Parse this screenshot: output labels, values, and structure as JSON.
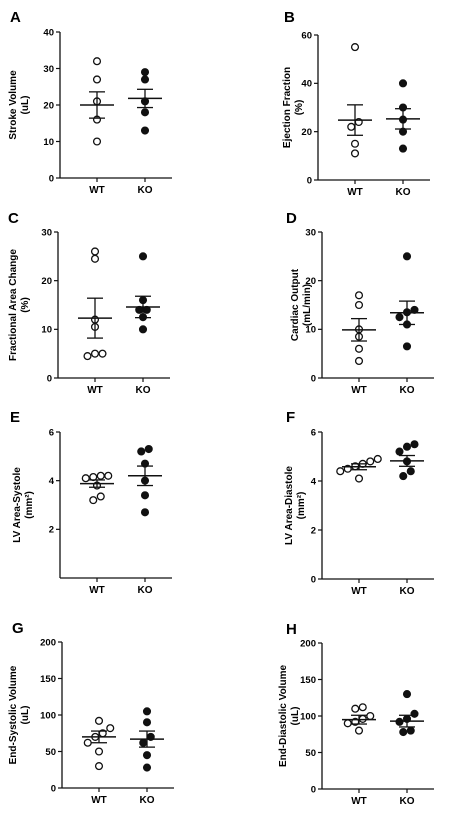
{
  "chart_data": [
    {
      "type": "scatter",
      "panel": "A",
      "categories": [
        "WT",
        "KO"
      ],
      "ylabel": [
        "Stroke Volume",
        "(uL)"
      ],
      "ylim": [
        0,
        40
      ],
      "yticks": [
        "0",
        "10",
        "20",
        "30",
        "40"
      ],
      "series": [
        {
          "values": [
            32,
            27,
            21,
            16,
            10
          ],
          "filled": false,
          "mean": 20,
          "sem": 3.6
        },
        {
          "values": [
            29,
            27,
            21,
            18,
            13
          ],
          "filled": true,
          "mean": 21.8,
          "sem": 2.5
        }
      ]
    },
    {
      "type": "scatter",
      "panel": "B",
      "categories": [
        "WT",
        "KO"
      ],
      "ylabel": [
        "Ejection Fraction",
        "(%)"
      ],
      "ylim": [
        0,
        60
      ],
      "yticks": [
        "0",
        "20",
        "40",
        "60"
      ],
      "series": [
        {
          "values": [
            55,
            24,
            22,
            15,
            11
          ],
          "filled": false,
          "mean": 24.8,
          "sem": 6.3
        },
        {
          "values": [
            40,
            30,
            25,
            20,
            13
          ],
          "filled": true,
          "mean": 25.3,
          "sem": 4.2
        }
      ]
    },
    {
      "type": "scatter",
      "panel": "C",
      "categories": [
        "WT",
        "KO"
      ],
      "ylabel": [
        "Fractional Area Change",
        "(%)"
      ],
      "ylim": [
        0,
        30
      ],
      "yticks": [
        "0",
        "10",
        "20",
        "30"
      ],
      "series": [
        {
          "values": [
            26,
            24.5,
            12,
            10.5,
            5,
            4.5,
            5
          ],
          "filled": false,
          "mean": 12.3,
          "sem": 4.1
        },
        {
          "values": [
            25,
            16,
            14,
            14,
            12.5,
            10
          ],
          "filled": true,
          "mean": 14.6,
          "sem": 2.2
        }
      ]
    },
    {
      "type": "scatter",
      "panel": "D",
      "categories": [
        "WT",
        "KO"
      ],
      "ylabel": [
        "Cardiac Output",
        "(mL/min)"
      ],
      "ylim": [
        0,
        30
      ],
      "yticks": [
        "0",
        "10",
        "20",
        "30"
      ],
      "series": [
        {
          "values": [
            17,
            15,
            10,
            8.5,
            6,
            3.5
          ],
          "filled": false,
          "mean": 9.9,
          "sem": 2.3
        },
        {
          "values": [
            25,
            14,
            13.5,
            12.5,
            11,
            6.5
          ],
          "filled": true,
          "mean": 13.4,
          "sem": 2.4
        }
      ]
    },
    {
      "type": "scatter",
      "panel": "E",
      "categories": [
        "WT",
        "KO"
      ],
      "ylabel": [
        "LV Area-Systole",
        "(mm²)"
      ],
      "ylim": [
        0,
        6
      ],
      "yticks": [
        "2",
        "4",
        "6"
      ],
      "series": [
        {
          "values": [
            4.15,
            4.2,
            4.2,
            4.1,
            3.8,
            3.35,
            3.2
          ],
          "filled": false,
          "mean": 3.88,
          "sem": 0.15
        },
        {
          "values": [
            5.2,
            5.3,
            4.7,
            4.0,
            3.4,
            2.7
          ],
          "filled": true,
          "mean": 4.2,
          "sem": 0.4
        }
      ]
    },
    {
      "type": "scatter",
      "panel": "F",
      "categories": [
        "WT",
        "KO"
      ],
      "ylabel": [
        "LV Area-Diastole",
        "(mm²)"
      ],
      "ylim": [
        0,
        6
      ],
      "yticks": [
        "0",
        "2",
        "4",
        "6"
      ],
      "series": [
        {
          "values": [
            4.8,
            4.9,
            4.7,
            4.5,
            4.4,
            4.1,
            4.6
          ],
          "filled": false,
          "mean": 4.58,
          "sem": 0.12
        },
        {
          "values": [
            5.5,
            5.4,
            5.2,
            4.8,
            4.4,
            4.2
          ],
          "filled": true,
          "mean": 4.82,
          "sem": 0.22
        }
      ]
    },
    {
      "type": "scatter",
      "panel": "G",
      "categories": [
        "WT",
        "KO"
      ],
      "ylabel": [
        "End-Systolic Volume",
        "(uL)"
      ],
      "ylim": [
        0,
        200
      ],
      "yticks": [
        "0",
        "50",
        "100",
        "150",
        "200"
      ],
      "series": [
        {
          "values": [
            92,
            82,
            75,
            70,
            62,
            50,
            30
          ],
          "filled": false,
          "mean": 70,
          "sem": 8
        },
        {
          "values": [
            105,
            90,
            70,
            62,
            45,
            28
          ],
          "filled": true,
          "mean": 67,
          "sem": 11
        }
      ]
    },
    {
      "type": "scatter",
      "panel": "H",
      "categories": [
        "WT",
        "KO"
      ],
      "ylabel": [
        "End-Diastolic Volume",
        "(uL)"
      ],
      "ylim": [
        0,
        200
      ],
      "yticks": [
        "0",
        "50",
        "100",
        "150",
        "200"
      ],
      "series": [
        {
          "values": [
            112,
            110,
            100,
            96,
            92,
            90,
            80
          ],
          "filled": false,
          "mean": 95,
          "sem": 6
        },
        {
          "values": [
            130,
            103,
            96,
            92,
            80,
            78
          ],
          "filled": true,
          "mean": 93,
          "sem": 8
        }
      ]
    }
  ]
}
